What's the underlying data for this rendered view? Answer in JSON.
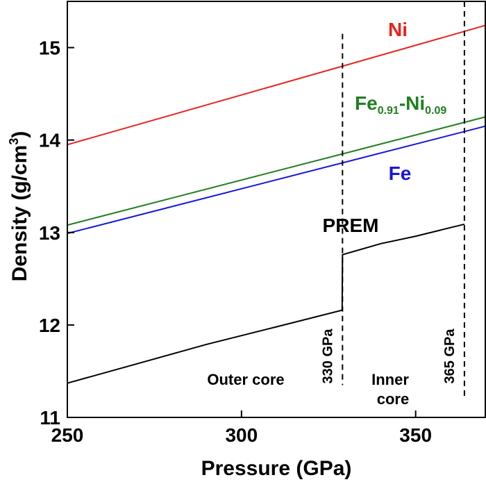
{
  "chart_data": {
    "type": "line",
    "xlabel": "Pressure (GPa)",
    "ylabel_main": "Density (g/cm",
    "ylabel_sup": "3",
    "ylabel_end": ")",
    "xlim": [
      250,
      370
    ],
    "ylim": [
      11,
      15.5
    ],
    "xticks": [
      250,
      300,
      350
    ],
    "yticks": [
      11,
      12,
      13,
      14,
      15
    ],
    "grid": false,
    "series": [
      {
        "id": "ni",
        "name": "Ni",
        "color": "#e8221a",
        "x": [
          250,
          370
        ],
        "y": [
          13.95,
          15.24
        ]
      },
      {
        "id": "feni",
        "name_main": "Fe",
        "name_sub1": "0.91",
        "name_mid": "-Ni",
        "name_sub2": "0.09",
        "color": "#1f7f1f",
        "x": [
          250,
          370
        ],
        "y": [
          13.08,
          14.25
        ]
      },
      {
        "id": "fe",
        "name": "Fe",
        "color": "#1616e0",
        "x": [
          250,
          370
        ],
        "y": [
          12.99,
          14.15
        ]
      },
      {
        "id": "prem",
        "name": "PREM",
        "color": "#000000",
        "x": [
          250,
          270,
          290,
          310,
          328.9,
          329,
          340,
          350,
          364
        ],
        "y": [
          11.37,
          11.58,
          11.79,
          11.98,
          12.16,
          12.76,
          12.88,
          12.96,
          13.09
        ]
      }
    ],
    "vlines": [
      {
        "x": 329,
        "label": "330 GPa",
        "y_from": 11.35,
        "y_to": 15.15
      },
      {
        "x": 364,
        "label": "365 GPa",
        "y_from": 11.2,
        "y_to": 15.5
      }
    ],
    "annotations": {
      "outer_core": "Outer core",
      "inner_line1": "Inner",
      "inner_line2": "core"
    }
  }
}
